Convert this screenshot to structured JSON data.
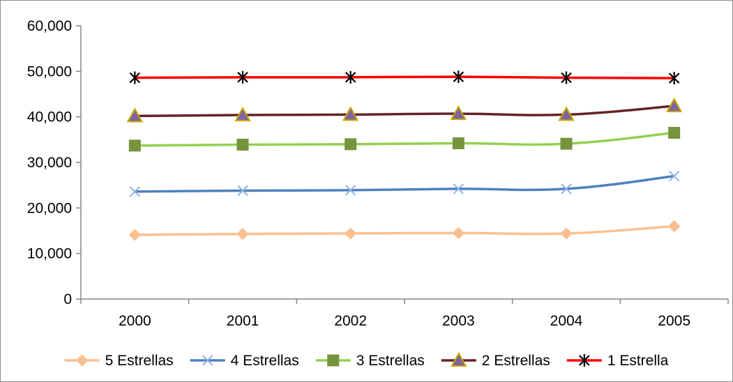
{
  "chart_data": {
    "type": "line",
    "title": "",
    "xlabel": "",
    "ylabel": "",
    "categories": [
      "2000",
      "2001",
      "2002",
      "2003",
      "2004",
      "2005"
    ],
    "ylim": [
      0,
      60000
    ],
    "yticks": [
      0,
      10000,
      20000,
      30000,
      40000,
      50000,
      60000
    ],
    "ytick_labels": [
      "0",
      "10,000",
      "20,000",
      "30,000",
      "40,000",
      "50,000",
      "60,000"
    ],
    "grid": false,
    "legend_position": "bottom",
    "smooth": true,
    "series": [
      {
        "name": "5 Estrellas",
        "values": [
          14100,
          14300,
          14400,
          14500,
          14400,
          16000
        ],
        "color": "#FAC090",
        "marker": "diamond",
        "marker_color": "#FAC090"
      },
      {
        "name": "4 Estrellas",
        "values": [
          23600,
          23800,
          23900,
          24200,
          24200,
          27000
        ],
        "color": "#4F81BD",
        "marker": "x",
        "marker_color": "#8EB4E3"
      },
      {
        "name": "3 Estrellas",
        "values": [
          33700,
          33900,
          34000,
          34200,
          34100,
          36500
        ],
        "color": "#92D050",
        "marker": "square",
        "marker_color": "#77933C"
      },
      {
        "name": "2 Estrellas",
        "values": [
          40200,
          40400,
          40500,
          40700,
          40500,
          42400
        ],
        "color": "#632523",
        "marker": "triangle",
        "marker_color": "#8064A2",
        "marker_edge": "#C8A800"
      },
      {
        "name": "1 Estrella",
        "values": [
          48600,
          48700,
          48700,
          48800,
          48600,
          48500
        ],
        "color": "#FF0000",
        "marker": "star",
        "marker_color": "#000000"
      }
    ]
  }
}
